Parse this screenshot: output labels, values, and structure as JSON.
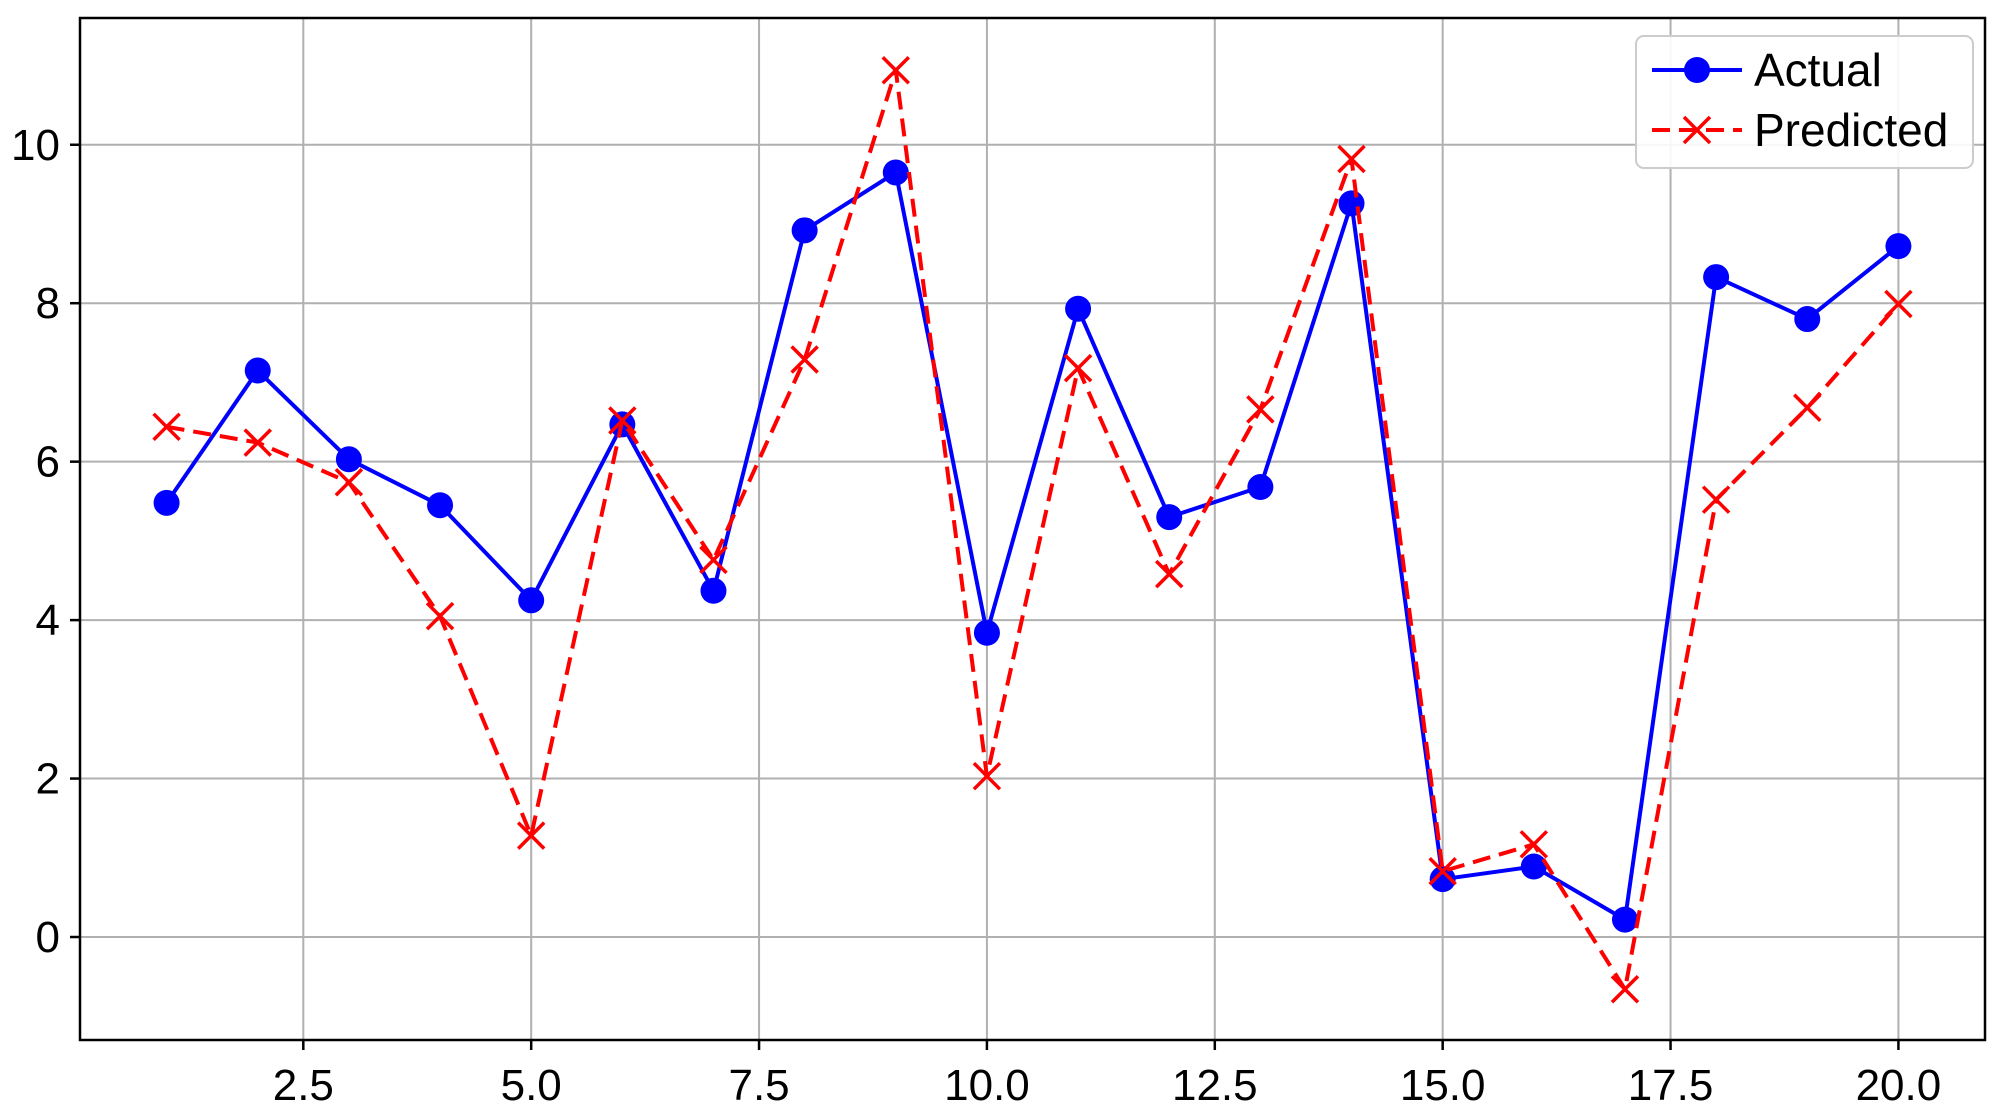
{
  "chart_data": {
    "type": "line",
    "title": "",
    "xlabel": "",
    "ylabel": "",
    "xlim": [
      0.05,
      20.95
    ],
    "ylim": [
      -1.3,
      11.6
    ],
    "xticks": [
      2.5,
      5.0,
      7.5,
      10.0,
      12.5,
      15.0,
      17.5,
      20.0
    ],
    "xtick_labels": [
      "2.5",
      "5.0",
      "7.5",
      "10.0",
      "12.5",
      "15.0",
      "17.5",
      "20.0"
    ],
    "yticks": [
      0,
      2,
      4,
      6,
      8,
      10
    ],
    "ytick_labels": [
      "0",
      "2",
      "4",
      "6",
      "8",
      "10"
    ],
    "grid": true,
    "legend_position": "top-right",
    "x": [
      1,
      2,
      3,
      4,
      5,
      6,
      7,
      8,
      9,
      10,
      11,
      12,
      13,
      14,
      15,
      16,
      17,
      18,
      19,
      20
    ],
    "series": [
      {
        "name": "Actual",
        "color": "#0000ff",
        "line_style": "solid",
        "marker": "circle",
        "values": [
          5.48,
          7.15,
          6.03,
          5.45,
          4.25,
          6.47,
          4.37,
          8.92,
          9.65,
          3.84,
          7.93,
          5.3,
          5.68,
          9.26,
          0.73,
          0.89,
          0.22,
          8.33,
          7.8,
          8.72
        ]
      },
      {
        "name": "Predicted",
        "color": "#ff0000",
        "line_style": "dashed",
        "marker": "x",
        "values": [
          6.44,
          6.24,
          5.74,
          4.05,
          1.28,
          6.52,
          4.76,
          7.29,
          10.94,
          2.03,
          7.18,
          4.58,
          6.66,
          9.82,
          0.83,
          1.17,
          -0.66,
          5.52,
          6.68,
          7.99
        ]
      }
    ]
  }
}
